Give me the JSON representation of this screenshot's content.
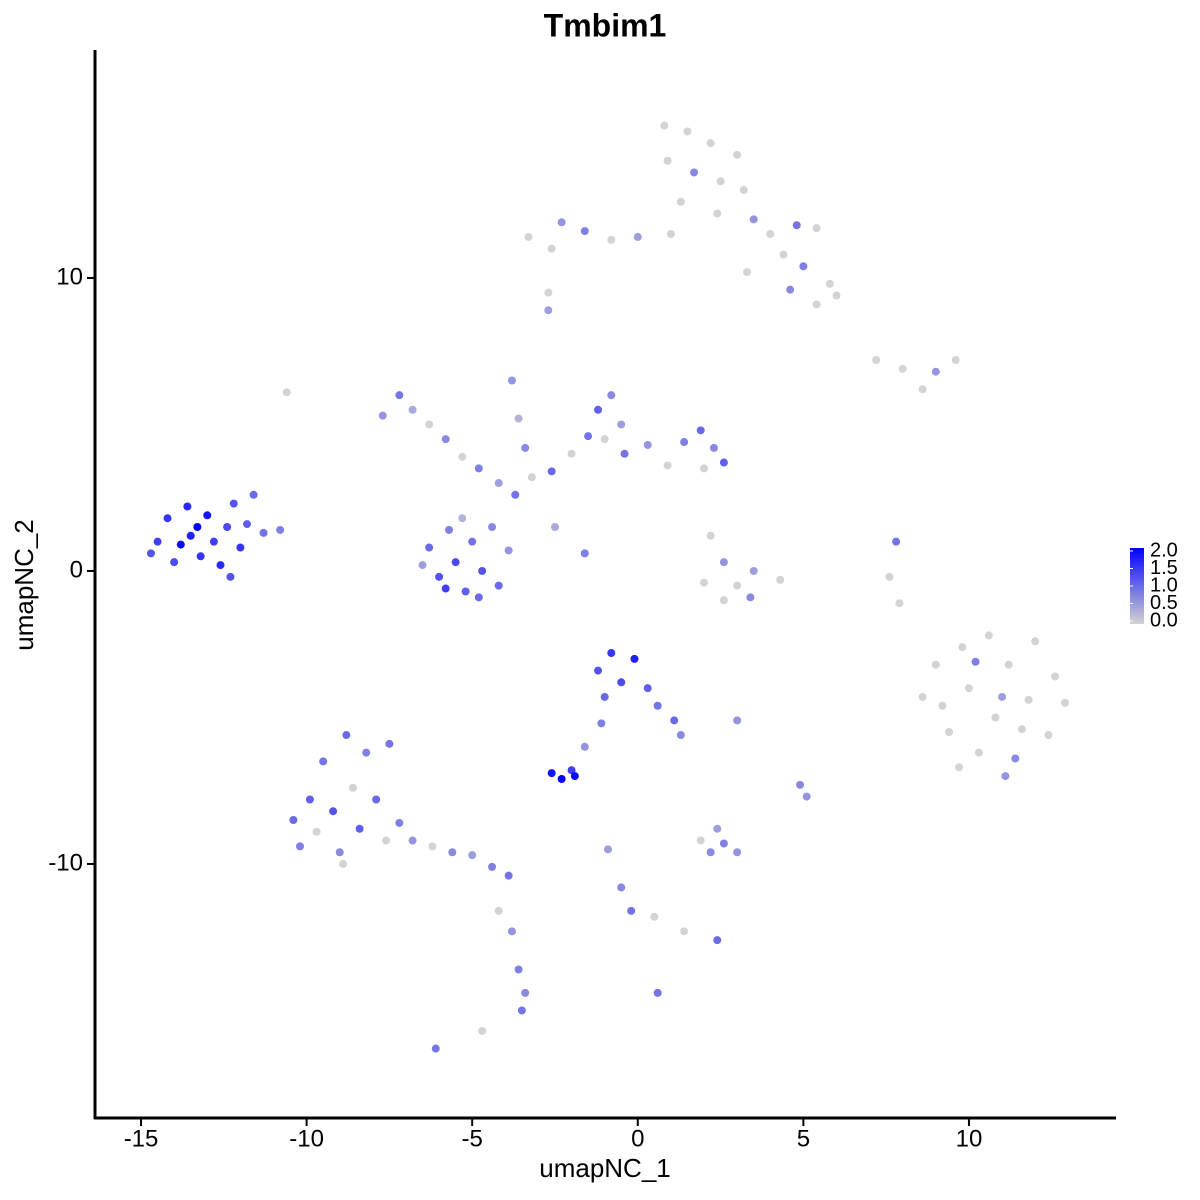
{
  "chart_data": {
    "type": "scatter",
    "title": "Tmbim1",
    "x_label": "umapNC_1",
    "y_label": "umapNC_2",
    "xlim": [
      -16.39,
      14.41
    ],
    "ylim": [
      -18.67,
      17.78
    ],
    "xticks": [
      -15,
      -10,
      -5,
      0,
      5,
      10
    ],
    "yticks": [
      -10,
      0,
      10
    ],
    "color_low": "#d3d3d3",
    "color_high": "#0000ff",
    "clim": [
      0,
      2
    ],
    "colorbar_ticks": [
      {
        "value": 2,
        "label": "2.0"
      },
      {
        "value": 1.5,
        "label": "1.5"
      },
      {
        "value": 1,
        "label": "1.0"
      },
      {
        "value": 0.5,
        "label": "0.5"
      },
      {
        "value": 0,
        "label": "0.0"
      }
    ],
    "x": [
      -14.5,
      -14.2,
      -14.0,
      -13.6,
      -13.5,
      -13.2,
      -13.0,
      -12.8,
      -12.6,
      -12.4,
      -12.2,
      -12.0,
      -11.8,
      -11.6,
      -11.3,
      -10.8,
      -12.3,
      -13.8,
      -14.7,
      -13.3,
      -6.3,
      -6.0,
      -5.7,
      -5.5,
      -5.2,
      -5.0,
      -4.7,
      -4.4,
      -4.2,
      -3.9,
      -5.8,
      -4.8,
      -6.5,
      -5.3,
      -7.7,
      -7.2,
      -6.8,
      -6.3,
      -5.8,
      -5.3,
      -4.8,
      -4.2,
      -3.7,
      -3.2,
      -3.8,
      -3.6,
      -3.4,
      -2.5,
      -1.6,
      -2.6,
      -2.0,
      -1.5,
      -1.2,
      -0.8,
      -1.0,
      -0.4,
      0.3,
      0.9,
      1.4,
      1.9,
      2.3,
      2.6,
      -0.5,
      2.0,
      0.8,
      1.5,
      2.2,
      3.0,
      0.9,
      1.7,
      2.5,
      3.2,
      1.3,
      2.4,
      3.5,
      4.0,
      4.8,
      5.4,
      4.4,
      5.0,
      5.8,
      6.0,
      5.4,
      1.0,
      0.0,
      -0.8,
      -1.6,
      -2.3,
      -3.3,
      -2.6,
      3.3,
      4.6,
      -2.7,
      7.2,
      8.0,
      9.0,
      9.6,
      8.6,
      2.2,
      2.6,
      3.0,
      3.5,
      2.0,
      2.6,
      3.4,
      4.3,
      7.8,
      7.6,
      7.9,
      8.6,
      9.0,
      9.4,
      9.8,
      10.0,
      10.3,
      10.6,
      10.8,
      11.2,
      11.4,
      11.8,
      12.0,
      12.4,
      12.6,
      10.2,
      11.0,
      9.2,
      11.6,
      12.9,
      9.7,
      11.1,
      -1.2,
      -0.8,
      -0.5,
      -0.1,
      0.3,
      0.6,
      1.1,
      1.3,
      -1.0,
      -1.1,
      -1.6,
      -2.0,
      -2.6,
      -2.3,
      -1.9,
      3.0,
      -10.4,
      -10.2,
      -9.9,
      -9.7,
      -9.5,
      -9.2,
      -9.0,
      -8.8,
      -8.6,
      -8.4,
      -8.2,
      -7.9,
      -7.6,
      -7.5,
      -7.2,
      -6.8,
      -6.2,
      -5.6,
      -5.0,
      -4.4,
      -3.9,
      -8.9,
      -4.2,
      -3.8,
      -3.6,
      -3.4,
      -3.5,
      -4.7,
      -6.1,
      -0.9,
      -0.5,
      -0.2,
      0.5,
      1.4,
      2.4,
      2.2,
      2.6,
      3.0,
      1.9,
      2.4,
      0.6,
      4.9,
      5.1,
      -10.6,
      -2.7
    ],
    "y": [
      1.0,
      1.8,
      0.3,
      2.2,
      1.2,
      0.5,
      1.9,
      1.0,
      0.2,
      1.5,
      2.3,
      0.8,
      1.6,
      2.6,
      1.3,
      1.4,
      -0.2,
      0.9,
      0.6,
      1.5,
      0.8,
      -0.2,
      1.4,
      0.3,
      -0.7,
      1.0,
      0.0,
      1.5,
      -0.5,
      0.7,
      -0.6,
      -0.9,
      0.2,
      1.8,
      5.3,
      6.0,
      5.5,
      5.0,
      4.5,
      3.9,
      3.5,
      3.0,
      2.6,
      3.2,
      6.5,
      5.2,
      4.2,
      1.5,
      0.6,
      3.4,
      4.0,
      4.6,
      5.5,
      6.0,
      4.5,
      4.0,
      4.3,
      3.6,
      4.4,
      4.8,
      4.2,
      3.7,
      5.0,
      3.5,
      15.2,
      15.0,
      14.6,
      14.2,
      14.0,
      13.6,
      13.3,
      13.0,
      12.6,
      12.2,
      12.0,
      11.5,
      11.8,
      11.7,
      10.8,
      10.4,
      9.8,
      9.4,
      9.1,
      11.5,
      11.4,
      11.3,
      11.6,
      11.9,
      11.4,
      11.0,
      10.2,
      9.6,
      8.9,
      7.2,
      6.9,
      6.8,
      7.2,
      6.2,
      1.2,
      0.3,
      -0.5,
      0.0,
      -0.4,
      -1.0,
      -0.9,
      -0.3,
      1.0,
      -0.2,
      -1.1,
      -4.3,
      -3.2,
      -5.5,
      -2.6,
      -4.0,
      -6.2,
      -2.2,
      -5.0,
      -3.2,
      -6.4,
      -4.4,
      -2.4,
      -5.6,
      -3.6,
      -3.1,
      -4.3,
      -4.6,
      -5.4,
      -4.5,
      -6.7,
      -7.0,
      -3.4,
      -2.8,
      -3.8,
      -3.0,
      -4.0,
      -4.6,
      -5.1,
      -5.6,
      -4.3,
      -5.2,
      -6.0,
      -6.8,
      -6.9,
      -7.1,
      -7.0,
      -5.1,
      -8.5,
      -9.4,
      -7.8,
      -8.9,
      -6.5,
      -8.2,
      -9.6,
      -5.6,
      -7.4,
      -8.8,
      -6.2,
      -7.8,
      -9.2,
      -5.9,
      -8.6,
      -9.2,
      -9.4,
      -9.6,
      -9.7,
      -10.1,
      -10.4,
      -10.0,
      -11.6,
      -12.3,
      -13.6,
      -14.4,
      -15.0,
      -15.7,
      -16.3,
      -9.5,
      -10.8,
      -11.6,
      -11.8,
      -12.3,
      -12.6,
      -9.6,
      -9.3,
      -9.6,
      -9.2,
      -8.8,
      -14.4,
      -7.3,
      -7.7,
      6.1,
      9.5
    ],
    "values": [
      1.4,
      1.5,
      1.3,
      1.6,
      1.7,
      1.5,
      1.8,
      1.4,
      1.6,
      1.3,
      1.2,
      1.5,
      1.1,
      1.0,
      0.9,
      0.8,
      1.2,
      1.9,
      1.2,
      2.0,
      1.0,
      1.2,
      0.8,
      1.3,
      1.1,
      0.9,
      1.2,
      0.7,
      1.0,
      0.6,
      1.4,
      1.0,
      0.5,
      0.3,
      0.6,
      0.9,
      0.4,
      0,
      0.7,
      0,
      0.8,
      0.5,
      0.9,
      0,
      0.6,
      0.3,
      0.7,
      0.4,
      0.8,
      1.0,
      0,
      0.9,
      1.1,
      0.7,
      0,
      0.9,
      0.6,
      0,
      0.8,
      1.0,
      0.7,
      1.1,
      0.5,
      0,
      0,
      0,
      0,
      0,
      0,
      0.7,
      0,
      0,
      0,
      0,
      0.6,
      0,
      0.9,
      0,
      0,
      0.8,
      0,
      0,
      0,
      0,
      0.5,
      0,
      0.8,
      0.6,
      0,
      0,
      0,
      0.7,
      0.5,
      0,
      0,
      0.6,
      0,
      0,
      0,
      0.6,
      0,
      0.5,
      0,
      0,
      0.7,
      0,
      0.9,
      0,
      0,
      0,
      0,
      0,
      0,
      0,
      0,
      0,
      0,
      0,
      0.7,
      0,
      0,
      0,
      0,
      0.8,
      0.5,
      0,
      0,
      0,
      0,
      0.6,
      1.2,
      1.5,
      1.3,
      1.7,
      1.1,
      0.9,
      1.0,
      0.7,
      1.0,
      0.8,
      0.6,
      1.4,
      1.8,
      2.0,
      1.9,
      0.6,
      1.0,
      0.8,
      1.1,
      0,
      0.9,
      1.2,
      0.7,
      1.0,
      0,
      1.1,
      0.8,
      1.0,
      0,
      0.9,
      0.8,
      0.6,
      0,
      0.7,
      0.5,
      0.8,
      0.9,
      0,
      0,
      0.6,
      0.8,
      0.7,
      0.9,
      0,
      0.9,
      0.5,
      0.7,
      0.9,
      0,
      0,
      1.0,
      0.7,
      0.8,
      0.6,
      0,
      0.5,
      0.9,
      0.7,
      0.6,
      0,
      0
    ]
  }
}
